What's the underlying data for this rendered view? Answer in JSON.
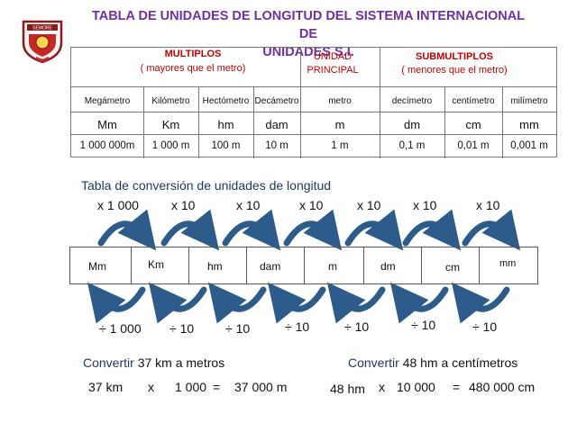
{
  "title": {
    "line1": "TABLA DE UNIDADES DE LONGITUD DEL SISTEMA INTERNACIONAL DE",
    "line2": "UNIDADES  S.I."
  },
  "logo": {
    "icon": "school-crest-icon",
    "text": "SEMORE"
  },
  "table": {
    "multiplos_label": "MULTIPLOS",
    "multiplos_sub": "( mayores que el metro)",
    "principal_label": "UNIDAD PRINCIPAL",
    "principal_line1": "UNIDAD",
    "principal_line2": "PRINCIPAL",
    "submultiplos_label": "SUBMULTIPLOS",
    "submultiplos_sub": "( menores que el metro)",
    "names": [
      "Megámetro",
      "Kilómetro",
      "Hectómetro",
      "Decámetro",
      "metro",
      "decímetro",
      "centímetro",
      "milímetro"
    ],
    "symbols": [
      "Mm",
      "Km",
      "hm",
      "dam",
      "m",
      "dm",
      "cm",
      "mm"
    ],
    "values": [
      "1 000 000m",
      "1 000 m",
      "100 m",
      "10 m",
      "1 m",
      "0,1 m",
      "0,01 m",
      "0,001 m"
    ]
  },
  "conversion": {
    "title": "Tabla de conversión de unidades de longitud",
    "multiply_factors": [
      "x 1 000",
      "x 10",
      "x 10",
      "x 10",
      "x 10",
      "x 10",
      "x 10"
    ],
    "strip_units": [
      "Mm",
      "Km",
      "hm",
      "dam",
      "m",
      "dm",
      "cm",
      "mm"
    ],
    "divide_factors": [
      "÷ 1 000",
      "÷ 10",
      "÷ 10",
      "÷ 10",
      "÷ 10",
      "÷ 10",
      "÷ 10"
    ],
    "arrow_color": "#2E5C8A"
  },
  "examples": [
    {
      "word": "Convertir",
      "rest": "37 km  a metros",
      "calc_from": "37 km",
      "op": "x",
      "factor": "1 000",
      "eq": "=",
      "result": "37 000  m"
    },
    {
      "word": "Convertir",
      "rest": "48 hm  a  centímetros",
      "calc_from": "48 hm",
      "op": "x",
      "factor": "10  000",
      "eq": "=",
      "result": "480  000  cm"
    }
  ],
  "colors": {
    "title": "#7030A0",
    "red": "#C00000",
    "label": "#1F3864"
  }
}
